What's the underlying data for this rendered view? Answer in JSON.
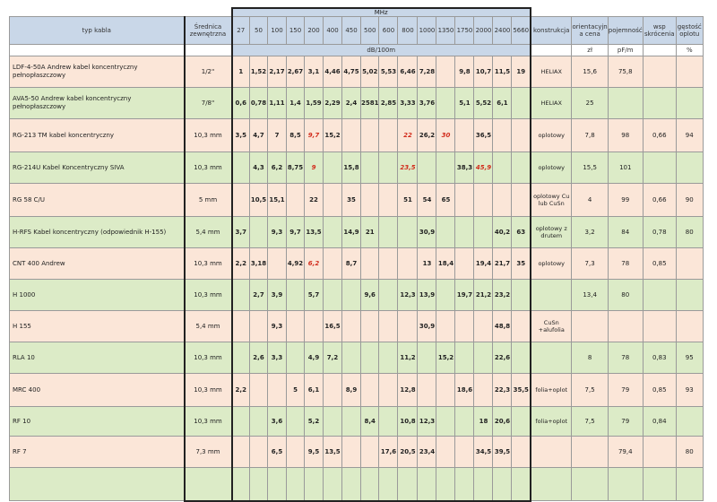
{
  "header": {
    "mhz_label": "MHz",
    "col_name": "typ kabla",
    "col_diameter": "Średnica zewnętrzna",
    "frequencies": [
      "27",
      "50",
      "100",
      "150",
      "200",
      "400",
      "450",
      "500",
      "600",
      "800",
      "1000",
      "1350",
      "1750",
      "2000",
      "2400",
      "5660"
    ],
    "col_construction": "konstrukcja",
    "col_price": "orientacyjn a cena",
    "col_capacity": "pojemność",
    "col_velocity": "wsp skrócenia",
    "col_density": "gęstość oplotu"
  },
  "units": {
    "attenuation": "dB/100m",
    "price": "zł",
    "capacity": "pF/m",
    "density": "%"
  },
  "rows": [
    {
      "name": "LDF-4-50A Andrew kabel koncentryczny pełnopłaszczowy",
      "diameter": "1/2\"",
      "values": [
        "1",
        "1,52",
        "2,17",
        "2,67",
        "3,1",
        "4,46",
        "4,75",
        "5,02",
        "5,53",
        "6,46",
        "7,28",
        "",
        "9,8",
        "10,7",
        "11,5",
        "19"
      ],
      "red": [],
      "construction": "HELIAX",
      "price": "15,6",
      "capacity": "75,8",
      "velocity": "",
      "density": ""
    },
    {
      "name": "AVA5-50 Andrew kabel koncentryczny pełnopłaszczowy",
      "diameter": "7/8\"",
      "values": [
        "0,6",
        "0,78",
        "1,11",
        "1,4",
        "1,59",
        "2,29",
        "2,4",
        "2581",
        "2,85",
        "3,33",
        "3,76",
        "",
        "5,1",
        "5,52",
        "6,1",
        ""
      ],
      "red": [],
      "construction": "HELIAX",
      "price": "25",
      "capacity": "",
      "velocity": "",
      "density": ""
    },
    {
      "name": "RG-213 TM kabel koncentryczny",
      "diameter": "10,3 mm",
      "values": [
        "3,5",
        "4,7",
        "7",
        "8,5",
        "9,7",
        "15,2",
        "",
        "",
        "",
        "22",
        "26,2",
        "30",
        "",
        "36,5",
        "",
        ""
      ],
      "red": [
        4,
        9,
        11
      ],
      "construction": "oplotowy",
      "price": "7,8",
      "capacity": "98",
      "velocity": "0,66",
      "density": "94"
    },
    {
      "name": "RG-214U Kabel Koncentryczny SIVA",
      "diameter": "10,3 mm",
      "values": [
        "",
        "4,3",
        "6,2",
        "8,75",
        "9",
        "",
        "15,8",
        "",
        "",
        "23,5",
        "",
        "",
        "38,3",
        "45,9",
        "",
        ""
      ],
      "red": [
        4,
        9,
        13
      ],
      "construction": "oplotowy",
      "price": "15,5",
      "capacity": "101",
      "velocity": "",
      "density": ""
    },
    {
      "name": "RG 58 C/U",
      "diameter": "5 mm",
      "values": [
        "",
        "10,5",
        "15,1",
        "",
        "22",
        "",
        "35",
        "",
        "",
        "51",
        "54",
        "65",
        "",
        "",
        "",
        ""
      ],
      "red": [],
      "construction": "oplotowy Cu lub CuSn",
      "price": "4",
      "capacity": "99",
      "velocity": "0,66",
      "density": "90"
    },
    {
      "name": "H-RFS Kabel koncentryczny (odpowiednik H-155)",
      "diameter": "5,4 mm",
      "values": [
        "3,7",
        "",
        "9,3",
        "9,7",
        "13,5",
        "",
        "14,9",
        "21",
        "",
        "",
        "30,9",
        "",
        "",
        "",
        "40,2",
        "63"
      ],
      "red": [],
      "construction": "oplotowy z drutem",
      "price": "3,2",
      "capacity": "84",
      "velocity": "0,78",
      "density": "80"
    },
    {
      "name": "CNT 400 Andrew",
      "diameter": "10,3 mm",
      "values": [
        "2,2",
        "3,18",
        "",
        "4,92",
        "6,2",
        "",
        "8,7",
        "",
        "",
        "",
        "13",
        "18,4",
        "",
        "19,4",
        "21,7",
        "35"
      ],
      "red": [
        4
      ],
      "construction": "oplotowy",
      "price": "7,3",
      "capacity": "78",
      "velocity": "0,85",
      "density": ""
    },
    {
      "name": "H 1000",
      "diameter": "10,3 mm",
      "values": [
        "",
        "2,7",
        "3,9",
        "",
        "5,7",
        "",
        "",
        "9,6",
        "",
        "12,3",
        "13,9",
        "",
        "19,7",
        "21,2",
        "23,2",
        ""
      ],
      "red": [],
      "construction": "",
      "price": "13,4",
      "capacity": "80",
      "velocity": "",
      "density": ""
    },
    {
      "name": "H 155",
      "diameter": "5,4 mm",
      "values": [
        "",
        "",
        "9,3",
        "",
        "",
        "16,5",
        "",
        "",
        "",
        "",
        "30,9",
        "",
        "",
        "",
        "48,8",
        ""
      ],
      "red": [],
      "construction": "CuSn +alufolia",
      "price": "",
      "capacity": "",
      "velocity": "",
      "density": ""
    },
    {
      "name": "RLA 10",
      "diameter": "10,3 mm",
      "values": [
        "",
        "2,6",
        "3,3",
        "",
        "4,9",
        "7,2",
        "",
        "",
        "",
        "11,2",
        "",
        "15,2",
        "",
        "",
        "22,6",
        ""
      ],
      "red": [],
      "construction": "",
      "price": "8",
      "capacity": "78",
      "velocity": "0,83",
      "density": "95"
    },
    {
      "name": "MRC 400",
      "diameter": "10,3 mm",
      "values": [
        "2,2",
        "",
        "",
        "5",
        "6,1",
        "",
        "8,9",
        "",
        "",
        "12,8",
        "",
        "",
        "18,6",
        "",
        "22,3",
        "35,5"
      ],
      "red": [],
      "construction": "folia+oplot",
      "price": "7,5",
      "capacity": "79",
      "velocity": "0,85",
      "density": "93"
    },
    {
      "name": "RF 10",
      "diameter": "10,3 mm",
      "values": [
        "",
        "",
        "3,6",
        "",
        "5,2",
        "",
        "",
        "8,4",
        "",
        "10,8",
        "12,3",
        "",
        "",
        "18",
        "20,6",
        ""
      ],
      "red": [],
      "construction": "folia+oplot",
      "price": "7,5",
      "capacity": "79",
      "velocity": "0,84",
      "density": ""
    },
    {
      "name": "RF 7",
      "diameter": "7,3 mm",
      "values": [
        "",
        "",
        "6,5",
        "",
        "9,5",
        "13,5",
        "",
        "",
        "17,6",
        "20,5",
        "23,4",
        "",
        "",
        "34,5",
        "39,5",
        ""
      ],
      "red": [],
      "construction": "",
      "price": "",
      "capacity": "79,4",
      "velocity": "",
      "density": "80"
    },
    {
      "name": "",
      "diameter": "",
      "values": [
        "",
        "",
        "",
        "",
        "",
        "",
        "",
        "",
        "",
        "",
        "",
        "",
        "",
        "",
        "",
        ""
      ],
      "red": [],
      "construction": "",
      "price": "",
      "capacity": "",
      "velocity": "",
      "density": ""
    }
  ]
}
